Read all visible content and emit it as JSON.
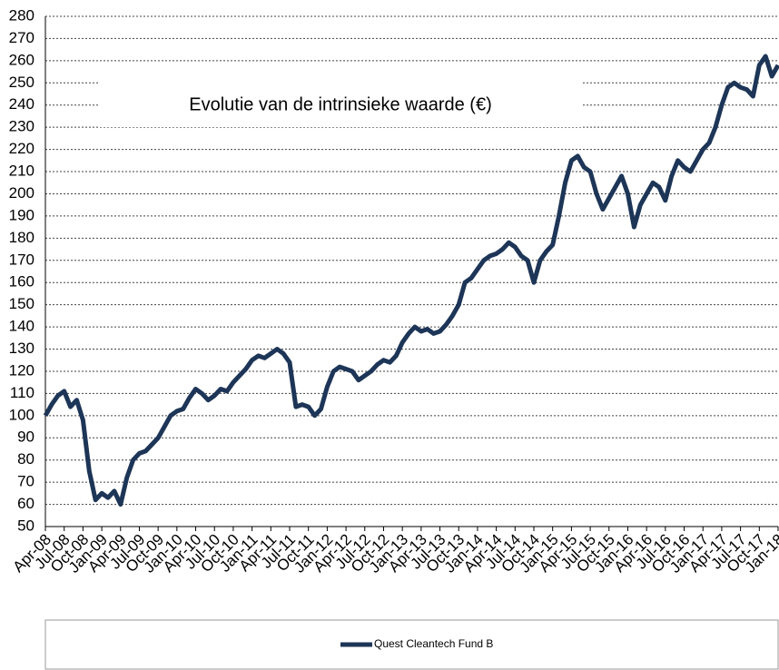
{
  "chart_data": {
    "type": "line",
    "title": "Evolutie van de intrinsieke waarde (€)",
    "categories": [
      "Apr-08",
      null,
      null,
      "Jul-08",
      null,
      null,
      "Oct-08",
      null,
      null,
      "Jan-09",
      null,
      null,
      "Apr-09",
      null,
      null,
      "Jul-09",
      null,
      null,
      "Oct-09",
      null,
      null,
      "Jan-10",
      null,
      null,
      "Apr-10",
      null,
      null,
      "Jul-10",
      null,
      null,
      "Oct-10",
      null,
      null,
      "Jan-11",
      null,
      null,
      "Apr-11",
      null,
      null,
      "Jul-11",
      null,
      null,
      "Oct-11",
      null,
      null,
      "Jan-12",
      null,
      null,
      "Apr-12",
      null,
      null,
      "Jul-12",
      null,
      null,
      "Oct-12",
      null,
      null,
      "Jan-13",
      null,
      null,
      "Apr-13",
      null,
      null,
      "Jul-13",
      null,
      null,
      "Oct-13",
      null,
      null,
      "Jan-14",
      null,
      null,
      "Apr-14",
      null,
      null,
      "Jul-14",
      null,
      null,
      "Oct-14",
      null,
      null,
      "Jan-15",
      null,
      null,
      "Apr-15",
      null,
      null,
      "Jul-15",
      null,
      null,
      "Oct-15",
      null,
      null,
      "Jan-16",
      null,
      null,
      "Apr-16",
      null,
      null,
      "Jul-16",
      null,
      null,
      "Oct-16",
      null,
      null,
      "Jan-17",
      null,
      null,
      "Apr-17",
      null,
      null,
      "Jul-17",
      null,
      null,
      "Oct-17",
      null,
      null,
      "Jan-18"
    ],
    "series": [
      {
        "name": "Quest Cleantech Fund B",
        "color": "#1d3557",
        "values": [
          100,
          105,
          109,
          111,
          104,
          107,
          98,
          75,
          62,
          65,
          63,
          66,
          60,
          72,
          80,
          83,
          84,
          87,
          90,
          95,
          100,
          102,
          103,
          108,
          112,
          110,
          107,
          109,
          112,
          111,
          115,
          118,
          121,
          125,
          127,
          126,
          128,
          130,
          128,
          124,
          104,
          105,
          104,
          100,
          103,
          113,
          120,
          122,
          121,
          120,
          116,
          118,
          120,
          123,
          125,
          124,
          127,
          133,
          137,
          140,
          138,
          139,
          137,
          138,
          141,
          145,
          150,
          160,
          162,
          166,
          170,
          172,
          173,
          175,
          178,
          176,
          172,
          170,
          160,
          170,
          174,
          177,
          190,
          205,
          215,
          217,
          212,
          210,
          200,
          193,
          198,
          203,
          208,
          200,
          185,
          195,
          200,
          205,
          203,
          197,
          208,
          215,
          212,
          210,
          215,
          220,
          223,
          230,
          240,
          248,
          250,
          248,
          247,
          244,
          258,
          262,
          253,
          258
        ]
      }
    ],
    "ylim": [
      50,
      280
    ],
    "yticks": [
      50,
      60,
      70,
      80,
      90,
      100,
      110,
      120,
      130,
      140,
      150,
      160,
      170,
      180,
      190,
      200,
      210,
      220,
      230,
      240,
      250,
      260,
      270,
      280
    ],
    "grid": true,
    "legend": "bottom"
  }
}
